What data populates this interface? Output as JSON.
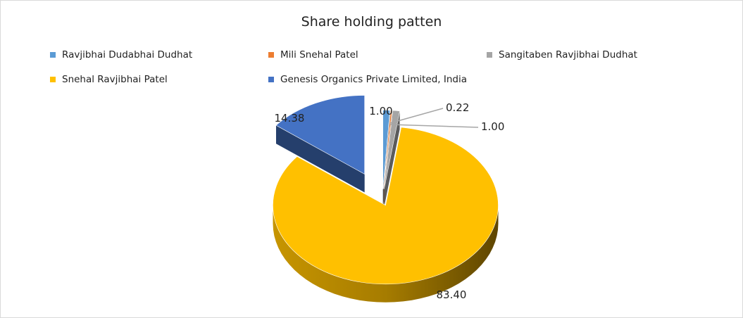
{
  "chart_data": {
    "type": "pie",
    "title": "Share holding patten",
    "style": "3d-exploded",
    "legend_position": "top",
    "series": [
      {
        "name": "Ravjibhai Dudabhai  Dudhat",
        "value": 1.0,
        "label": "1.00",
        "color": "#5b9bd5"
      },
      {
        "name": "Mili Snehal Patel",
        "value": 0.22,
        "label": "0.22",
        "color": "#ed7d31"
      },
      {
        "name": "Sangitaben Ravjibhai Dudhat",
        "value": 1.0,
        "label": "1.00",
        "color": "#a5a5a5"
      },
      {
        "name": "Snehal Ravjibhai Patel",
        "value": 83.4,
        "label": "83.40",
        "color": "#ffc000"
      },
      {
        "name": "Genesis  Organics Private Limited,  India",
        "value": 14.38,
        "label": "14.38",
        "color": "#4472c4"
      }
    ]
  }
}
